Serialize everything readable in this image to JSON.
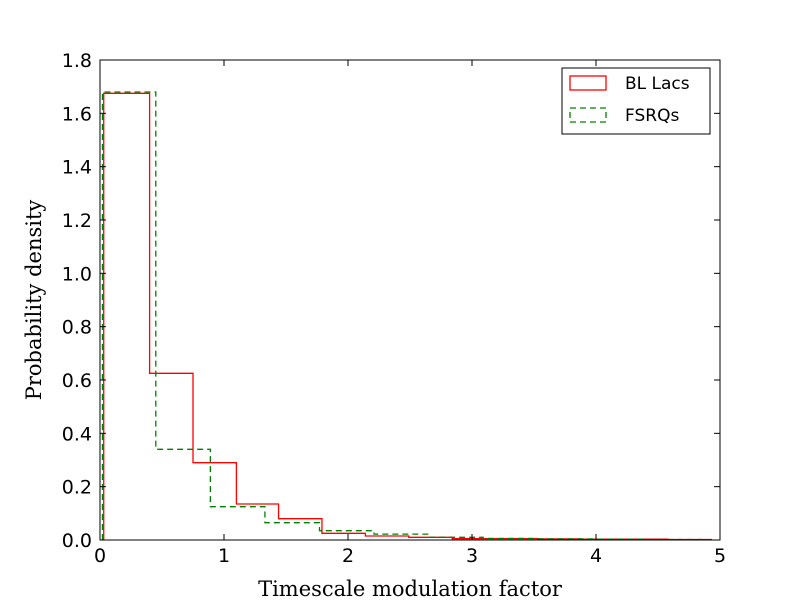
{
  "chart_data": {
    "type": "histogram",
    "title": "",
    "xlabel": "Timescale modulation factor",
    "ylabel": "Probability density",
    "xlim": [
      0,
      5
    ],
    "ylim": [
      0,
      1.8
    ],
    "xticks": [
      "0",
      "1",
      "2",
      "3",
      "4",
      "5"
    ],
    "yticks": [
      "0.0",
      "0.2",
      "0.4",
      "0.6",
      "0.8",
      "1.0",
      "1.2",
      "1.4",
      "1.6",
      "1.8"
    ],
    "grid": false,
    "legend_position": "top-right",
    "series": [
      {
        "name": "BL Lacs",
        "color": "#ff0000",
        "line_style": "solid",
        "bin_edges": [
          0.03,
          0.4,
          0.75,
          1.1,
          1.44,
          1.79,
          2.14,
          2.49,
          2.84,
          3.19,
          3.54,
          3.88,
          4.23,
          4.58,
          4.93
        ],
        "values": [
          1.675,
          0.625,
          0.29,
          0.135,
          0.08,
          0.025,
          0.015,
          0.01,
          0.005,
          0.005,
          0.004,
          0.003,
          0.003,
          0.002
        ]
      },
      {
        "name": "FSRQs",
        "color": "#008000",
        "line_style": "dashed",
        "bin_edges": [
          0.02,
          0.45,
          0.89,
          1.33,
          1.77,
          2.21,
          2.65,
          3.09,
          3.53,
          3.97,
          4.41,
          4.85
        ],
        "values": [
          1.68,
          0.34,
          0.125,
          0.065,
          0.035,
          0.022,
          0.01,
          0.006,
          0.004,
          0.003,
          0.002
        ]
      }
    ]
  }
}
